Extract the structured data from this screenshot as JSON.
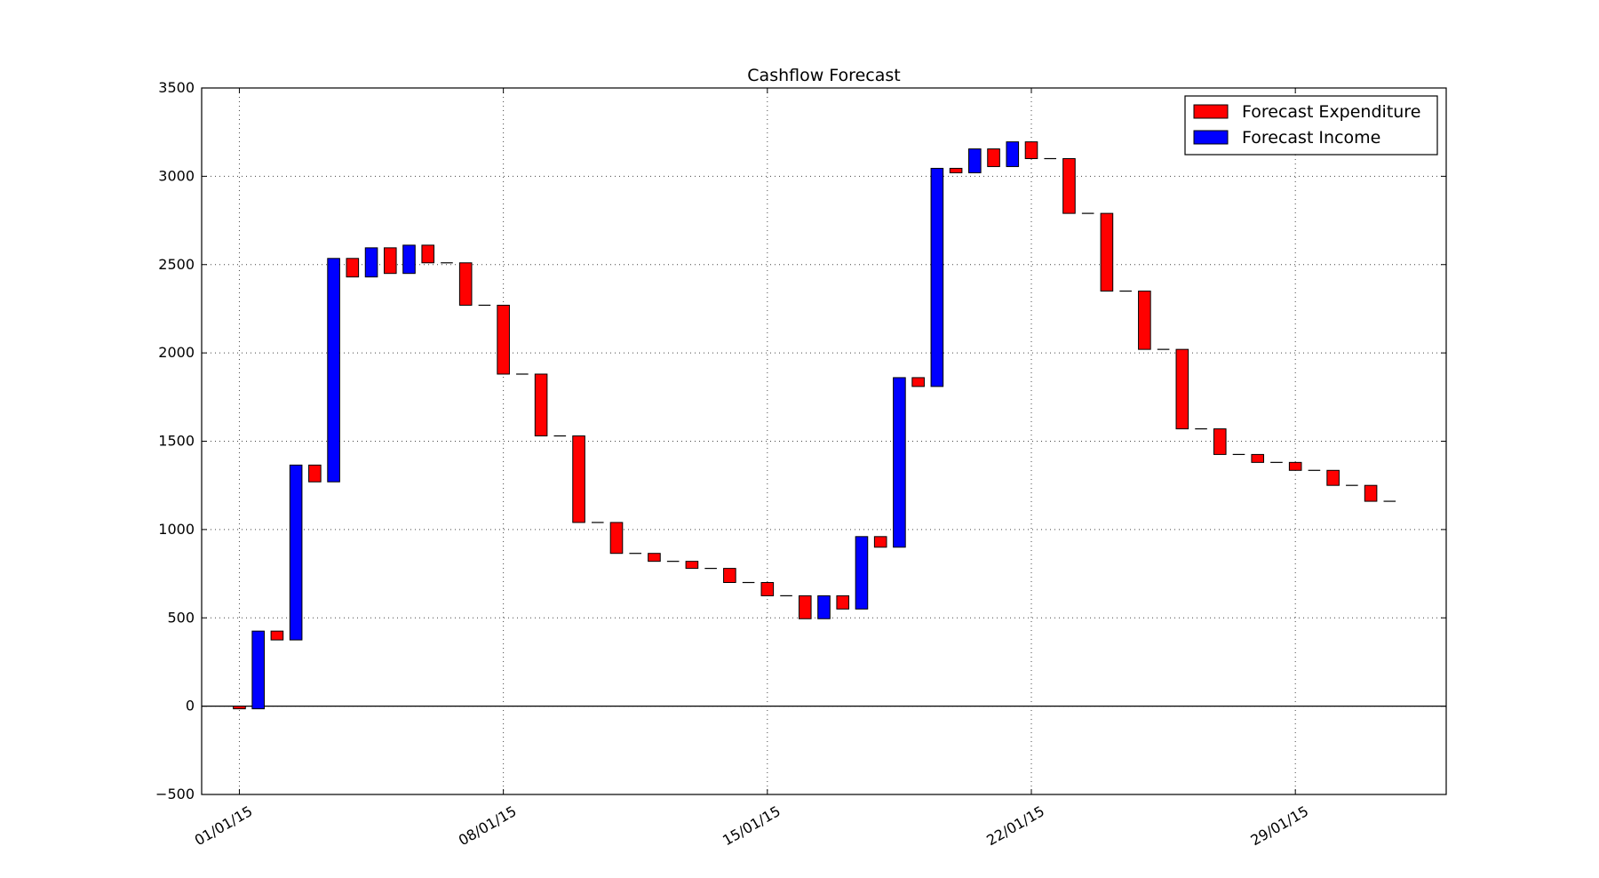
{
  "chart_data": {
    "type": "bar",
    "subtype": "waterfall",
    "title": "Cashflow Forecast",
    "xlabel": "",
    "ylabel": "",
    "ylim": [
      -500,
      3500
    ],
    "y_ticks": [
      -500,
      0,
      500,
      1000,
      1500,
      2000,
      2500,
      3000,
      3500
    ],
    "y_tick_labels": [
      "−500",
      "0",
      "500",
      "1000",
      "1500",
      "2000",
      "2500",
      "3000",
      "3500"
    ],
    "x_start_date": "2014-12-31",
    "x_end_date": "2015-02-02",
    "x_ticks": [
      "2015-01-01",
      "2015-01-08",
      "2015-01-15",
      "2015-01-22",
      "2015-01-29"
    ],
    "x_tick_labels": [
      "01/01/15",
      "08/01/15",
      "15/01/15",
      "22/01/15",
      "29/01/15"
    ],
    "grid": true,
    "zero_line": true,
    "legend_position": "top-right",
    "series": [
      {
        "name": "Forecast Expenditure",
        "color": "#ff0000"
      },
      {
        "name": "Forecast Income",
        "color": "#0000ff"
      }
    ],
    "bars": [
      {
        "date": "2015-01-01",
        "type": "expenditure",
        "from": 0,
        "to": -15
      },
      {
        "date": "2015-01-01",
        "type": "income",
        "from": -15,
        "to": 425
      },
      {
        "date": "2015-01-02",
        "type": "expenditure",
        "from": 425,
        "to": 375
      },
      {
        "date": "2015-01-02",
        "type": "income",
        "from": 375,
        "to": 1365
      },
      {
        "date": "2015-01-03",
        "type": "expenditure",
        "from": 1365,
        "to": 1270
      },
      {
        "date": "2015-01-03",
        "type": "income",
        "from": 1270,
        "to": 2535
      },
      {
        "date": "2015-01-04",
        "type": "expenditure",
        "from": 2535,
        "to": 2430
      },
      {
        "date": "2015-01-04",
        "type": "income",
        "from": 2430,
        "to": 2595
      },
      {
        "date": "2015-01-05",
        "type": "expenditure",
        "from": 2595,
        "to": 2450
      },
      {
        "date": "2015-01-05",
        "type": "income",
        "from": 2450,
        "to": 2610
      },
      {
        "date": "2015-01-06",
        "type": "expenditure",
        "from": 2610,
        "to": 2510
      },
      {
        "date": "2015-01-07",
        "type": "expenditure",
        "from": 2510,
        "to": 2270
      },
      {
        "date": "2015-01-08",
        "type": "expenditure",
        "from": 2270,
        "to": 1880
      },
      {
        "date": "2015-01-09",
        "type": "expenditure",
        "from": 1880,
        "to": 1530
      },
      {
        "date": "2015-01-10",
        "type": "expenditure",
        "from": 1530,
        "to": 1040
      },
      {
        "date": "2015-01-11",
        "type": "expenditure",
        "from": 1040,
        "to": 865
      },
      {
        "date": "2015-01-12",
        "type": "expenditure",
        "from": 865,
        "to": 820
      },
      {
        "date": "2015-01-13",
        "type": "expenditure",
        "from": 820,
        "to": 780
      },
      {
        "date": "2015-01-14",
        "type": "expenditure",
        "from": 780,
        "to": 700
      },
      {
        "date": "2015-01-15",
        "type": "expenditure",
        "from": 700,
        "to": 625
      },
      {
        "date": "2015-01-16",
        "type": "expenditure",
        "from": 625,
        "to": 495
      },
      {
        "date": "2015-01-16",
        "type": "income",
        "from": 495,
        "to": 625
      },
      {
        "date": "2015-01-17",
        "type": "expenditure",
        "from": 625,
        "to": 550
      },
      {
        "date": "2015-01-17",
        "type": "income",
        "from": 550,
        "to": 960
      },
      {
        "date": "2015-01-18",
        "type": "expenditure",
        "from": 960,
        "to": 900
      },
      {
        "date": "2015-01-18",
        "type": "income",
        "from": 900,
        "to": 1860
      },
      {
        "date": "2015-01-19",
        "type": "expenditure",
        "from": 1860,
        "to": 1810
      },
      {
        "date": "2015-01-19",
        "type": "income",
        "from": 1810,
        "to": 3045
      },
      {
        "date": "2015-01-20",
        "type": "expenditure",
        "from": 3045,
        "to": 3020
      },
      {
        "date": "2015-01-20",
        "type": "income",
        "from": 3020,
        "to": 3155
      },
      {
        "date": "2015-01-21",
        "type": "expenditure",
        "from": 3155,
        "to": 3055
      },
      {
        "date": "2015-01-21",
        "type": "income",
        "from": 3055,
        "to": 3195
      },
      {
        "date": "2015-01-22",
        "type": "expenditure",
        "from": 3195,
        "to": 3100
      },
      {
        "date": "2015-01-23",
        "type": "expenditure",
        "from": 3100,
        "to": 2790
      },
      {
        "date": "2015-01-24",
        "type": "expenditure",
        "from": 2790,
        "to": 2350
      },
      {
        "date": "2015-01-25",
        "type": "expenditure",
        "from": 2350,
        "to": 2020
      },
      {
        "date": "2015-01-26",
        "type": "expenditure",
        "from": 2020,
        "to": 1570
      },
      {
        "date": "2015-01-27",
        "type": "expenditure",
        "from": 1570,
        "to": 1425
      },
      {
        "date": "2015-01-28",
        "type": "expenditure",
        "from": 1425,
        "to": 1380
      },
      {
        "date": "2015-01-29",
        "type": "expenditure",
        "from": 1380,
        "to": 1335
      },
      {
        "date": "2015-01-30",
        "type": "expenditure",
        "from": 1335,
        "to": 1250
      },
      {
        "date": "2015-01-31",
        "type": "expenditure",
        "from": 1250,
        "to": 1160
      }
    ]
  }
}
